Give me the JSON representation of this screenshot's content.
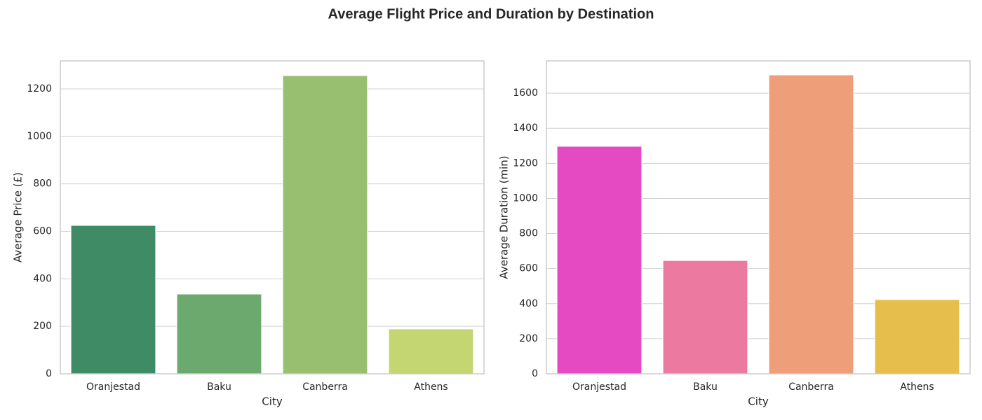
{
  "title": "Average Flight Price and Duration by Destination",
  "chart_data": [
    {
      "type": "bar",
      "categories": [
        "Oranjestad",
        "Baku",
        "Canberra",
        "Athens"
      ],
      "values": [
        625,
        336,
        1256,
        189
      ],
      "colors": [
        "#3f8b65",
        "#6ca96e",
        "#98bf70",
        "#c3d672"
      ],
      "xlabel": "City",
      "ylabel": "Average Price (£)",
      "ylim": [
        0,
        1318
      ],
      "yticks": [
        0,
        200,
        400,
        600,
        800,
        1000,
        1200
      ],
      "grid": true
    },
    {
      "type": "bar",
      "categories": [
        "Oranjestad",
        "Baku",
        "Canberra",
        "Athens"
      ],
      "values": [
        1297,
        646,
        1704,
        423
      ],
      "colors": [
        "#e54ac2",
        "#ec799f",
        "#ee9e79",
        "#e6be4c"
      ],
      "xlabel": "City",
      "ylabel": "Average Duration (min)",
      "ylim": [
        0,
        1784
      ],
      "yticks": [
        0,
        200,
        400,
        600,
        800,
        1000,
        1200,
        1400,
        1600
      ],
      "grid": true
    }
  ]
}
